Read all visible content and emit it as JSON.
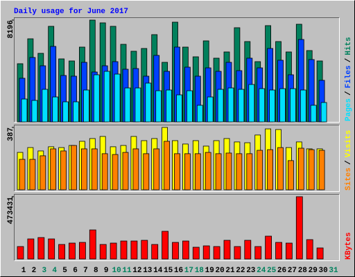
{
  "chart_data": [
    {
      "type": "bar",
      "title": "Daily usage for June 2017",
      "ylim": [
        0,
        8196
      ],
      "yticks": [
        8196
      ],
      "legend_separator": "/",
      "series": [
        {
          "name": "Hits",
          "color": "#00805c",
          "values": [
            4684,
            6691,
            5520,
            7695,
            5074,
            4907,
            6022,
            8196,
            7974,
            7695,
            6245,
            5688,
            5911,
            7026,
            4795,
            8029,
            6022,
            5241,
            6524,
            5130,
            5632,
            7583,
            6468,
            4851,
            7751,
            6468,
            5632,
            7862,
            5743,
            4907,
            0
          ]
        },
        {
          "name": "Files",
          "color": "#0040ff",
          "values": [
            3513,
            5186,
            4517,
            6078,
            3736,
            3680,
            4795,
            4015,
            4517,
            4851,
            4238,
            4294,
            3680,
            5353,
            4070,
            6022,
            4405,
            3680,
            4349,
            4070,
            4795,
            4126,
            5130,
            4349,
            5911,
            4963,
            3792,
            6635,
            5018,
            3346,
            0
          ]
        },
        {
          "name": "Pages",
          "color": "#00e0ff",
          "values": [
            1840,
            1729,
            2621,
            2007,
            1617,
            1617,
            2565,
            3792,
            4070,
            3847,
            2732,
            2732,
            3123,
            2509,
            2565,
            2175,
            2509,
            1338,
            2007,
            2621,
            2732,
            2621,
            3011,
            2676,
            2565,
            2676,
            2676,
            2565,
            1338,
            1561,
            0
          ]
        }
      ]
    },
    {
      "type": "bar",
      "ylim": [
        0,
        387
      ],
      "yticks": [
        387
      ],
      "legend_separator": "/",
      "series": [
        {
          "name": "Visits",
          "color": "#ffff00",
          "values": [
            232,
            262,
            241,
            267,
            262,
            275,
            301,
            318,
            331,
            267,
            275,
            331,
            305,
            318,
            387,
            305,
            284,
            305,
            271,
            305,
            318,
            297,
            292,
            340,
            378,
            374,
            262,
            297,
            254,
            254,
            0
          ]
        },
        {
          "name": "Sites",
          "color": "#ff8000",
          "values": [
            189,
            189,
            211,
            254,
            241,
            275,
            254,
            254,
            224,
            219,
            232,
            254,
            224,
            254,
            301,
            224,
            224,
            224,
            232,
            224,
            228,
            224,
            224,
            245,
            249,
            262,
            181,
            258,
            249,
            245,
            0
          ]
        }
      ]
    },
    {
      "type": "bar",
      "ylim": [
        0,
        473431
      ],
      "yticks": [
        473431
      ],
      "categories": [
        "1",
        "2",
        "3",
        "4",
        "5",
        "6",
        "7",
        "8",
        "9",
        "10",
        "11",
        "12",
        "13",
        "14",
        "15",
        "16",
        "17",
        "18",
        "19",
        "20",
        "21",
        "22",
        "23",
        "24",
        "25",
        "26",
        "27",
        "28",
        "29",
        "30",
        "31"
      ],
      "category_colors": [
        "#000000",
        "#000000",
        "#00805c",
        "#00805c",
        "#000000",
        "#000000",
        "#000000",
        "#000000",
        "#000000",
        "#00805c",
        "#00805c",
        "#000000",
        "#000000",
        "#000000",
        "#000000",
        "#000000",
        "#00805c",
        "#00805c",
        "#000000",
        "#000000",
        "#000000",
        "#000000",
        "#000000",
        "#00805c",
        "#00805c",
        "#000000",
        "#000000",
        "#000000",
        "#000000",
        "#000000",
        "#00805c"
      ],
      "series": [
        {
          "name": "KBytes",
          "color": "#ff0000",
          "values": [
            94685,
            152549,
            163069,
            152549,
            110466,
            120987,
            126247,
            220933,
            110466,
            120987,
            136768,
            136768,
            142028,
            110466,
            210412,
            126247,
            136768,
            89425,
            99946,
            94685,
            142028,
            94685,
            142028,
            94685,
            173590,
            126247,
            120987,
            473431,
            147288,
            84165,
            0
          ]
        }
      ]
    }
  ]
}
